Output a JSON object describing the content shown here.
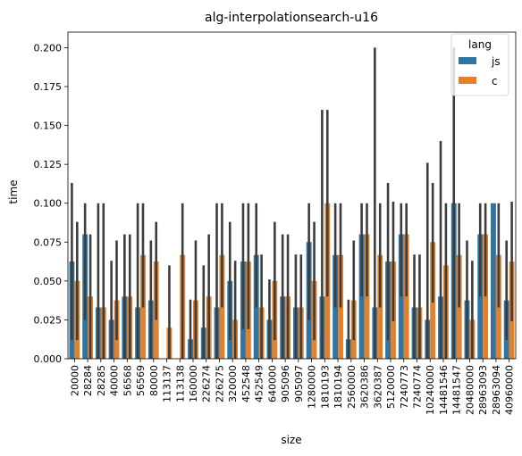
{
  "chart_data": {
    "type": "bar",
    "title": "alg-interpolationsearch-u16",
    "xlabel": "size",
    "ylabel": "time",
    "ylim": [
      0,
      0.21
    ],
    "yticks": [
      "0.000",
      "0.025",
      "0.050",
      "0.075",
      "0.100",
      "0.125",
      "0.150",
      "0.175",
      "0.200"
    ],
    "legend": {
      "title": "lang",
      "placement": "top-right"
    },
    "categories": [
      "20000",
      "28284",
      "28285",
      "40000",
      "56568",
      "56569",
      "80000",
      "113137",
      "113138",
      "160000",
      "226274",
      "226275",
      "320000",
      "452548",
      "452549",
      "640000",
      "905096",
      "905097",
      "1280000",
      "1810193",
      "1810194",
      "2560000",
      "3620386",
      "3620387",
      "5120000",
      "7240773",
      "7240774",
      "10240000",
      "14481546",
      "14481547",
      "20480000",
      "28963093",
      "28963094",
      "40960000"
    ],
    "series": [
      {
        "name": "js",
        "color": "#3274a1",
        "values": [
          0.0625,
          0.08,
          0.033,
          0.025,
          0.04,
          0.033,
          0.0375,
          0.0,
          0.0,
          0.0125,
          0.02,
          0.033,
          0.05,
          0.0625,
          0.0667,
          0.025,
          0.04,
          0.033,
          0.075,
          0.04,
          0.0667,
          0.0125,
          0.08,
          0.033,
          0.0625,
          0.08,
          0.033,
          0.025,
          0.04,
          0.1,
          0.0375,
          0.08,
          0.1,
          0.0375
        ],
        "ci_low": [
          0.012,
          0.025,
          0.0,
          0.0,
          0.0,
          0.0,
          0.0,
          0.0,
          0.0,
          0.0,
          0.0,
          0.0,
          0.012,
          0.019,
          0.033,
          0.0,
          0.0,
          0.0,
          0.025,
          0.0,
          0.033,
          0.0,
          0.04,
          0.0,
          0.012,
          0.04,
          0.0,
          0.0,
          0.0,
          0.0,
          0.0,
          0.04,
          0.1,
          0.012
        ],
        "ci_high": [
          0.113,
          0.1,
          0.1,
          0.063,
          0.08,
          0.1,
          0.076,
          0.0,
          0.0,
          0.038,
          0.06,
          0.1,
          0.088,
          0.1,
          0.1,
          0.051,
          0.08,
          0.067,
          0.1,
          0.16,
          0.1,
          0.038,
          0.1,
          0.2,
          0.113,
          0.1,
          0.067,
          0.126,
          0.14,
          0.2,
          0.076,
          0.1,
          0.1,
          0.076
        ]
      },
      {
        "name": "c",
        "color": "#e1812c",
        "values": [
          0.05,
          0.04,
          0.033,
          0.0375,
          0.04,
          0.0667,
          0.0625,
          0.02,
          0.0667,
          0.0375,
          0.04,
          0.0667,
          0.025,
          0.0625,
          0.033,
          0.05,
          0.04,
          0.033,
          0.05,
          0.1,
          0.0667,
          0.0375,
          0.08,
          0.0667,
          0.0625,
          0.08,
          0.033,
          0.075,
          0.06,
          0.0667,
          0.025,
          0.08,
          0.0667,
          0.0625
        ],
        "ci_low": [
          0.012,
          0.0,
          0.0,
          0.012,
          0.0,
          0.033,
          0.025,
          0.0,
          0.0,
          0.0,
          0.0,
          0.033,
          0.0,
          0.019,
          0.0,
          0.012,
          0.0,
          0.0,
          0.012,
          0.04,
          0.033,
          0.012,
          0.04,
          0.033,
          0.024,
          0.04,
          0.0,
          0.036,
          0.0,
          0.033,
          0.0,
          0.04,
          0.033,
          0.024
        ],
        "ci_high": [
          0.088,
          0.08,
          0.1,
          0.076,
          0.08,
          0.1,
          0.088,
          0.06,
          0.1,
          0.076,
          0.08,
          0.1,
          0.063,
          0.1,
          0.067,
          0.088,
          0.08,
          0.067,
          0.088,
          0.16,
          0.1,
          0.076,
          0.1,
          0.1,
          0.101,
          0.1,
          0.067,
          0.113,
          0.1,
          0.1,
          0.063,
          0.1,
          0.1,
          0.101
        ]
      }
    ]
  }
}
